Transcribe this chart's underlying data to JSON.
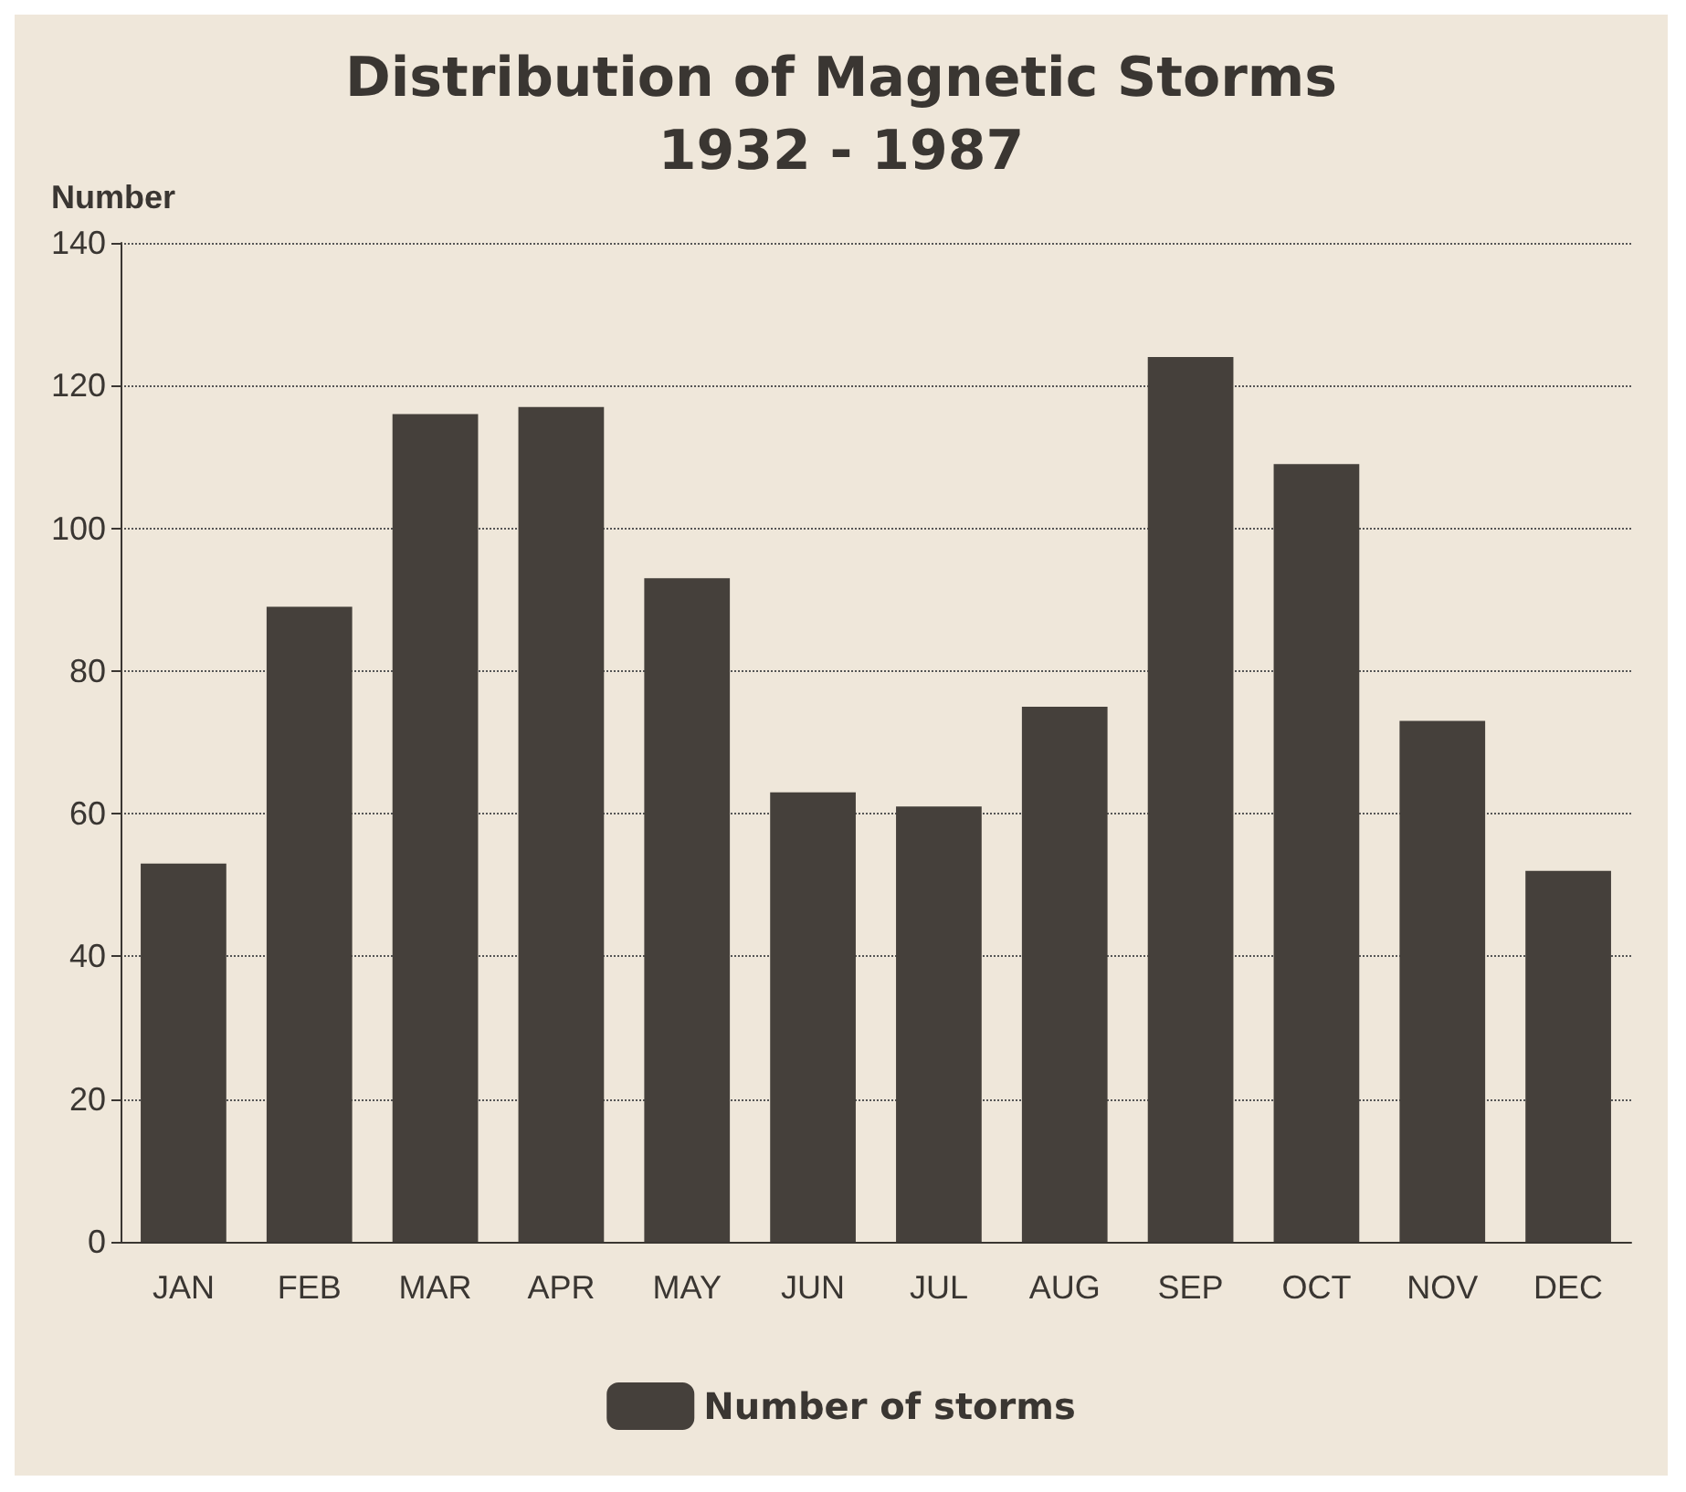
{
  "chart_data": {
    "type": "bar",
    "title": "Distribution of Magnetic Storms\n1932 - 1987",
    "ylabel": "Number",
    "categories": [
      "JAN",
      "FEB",
      "MAR",
      "APR",
      "MAY",
      "JUN",
      "JUL",
      "AUG",
      "SEP",
      "OCT",
      "NOV",
      "DEC"
    ],
    "series": [
      {
        "name": "Number of storms",
        "color": "#45403b",
        "values": [
          53,
          89,
          116,
          117,
          93,
          63,
          61,
          75,
          124,
          109,
          73,
          52
        ]
      }
    ],
    "ylim": [
      0,
      140
    ],
    "yticks": [
      0,
      20,
      40,
      60,
      80,
      100,
      120,
      140
    ],
    "grid": "y",
    "legend": "bottom"
  }
}
